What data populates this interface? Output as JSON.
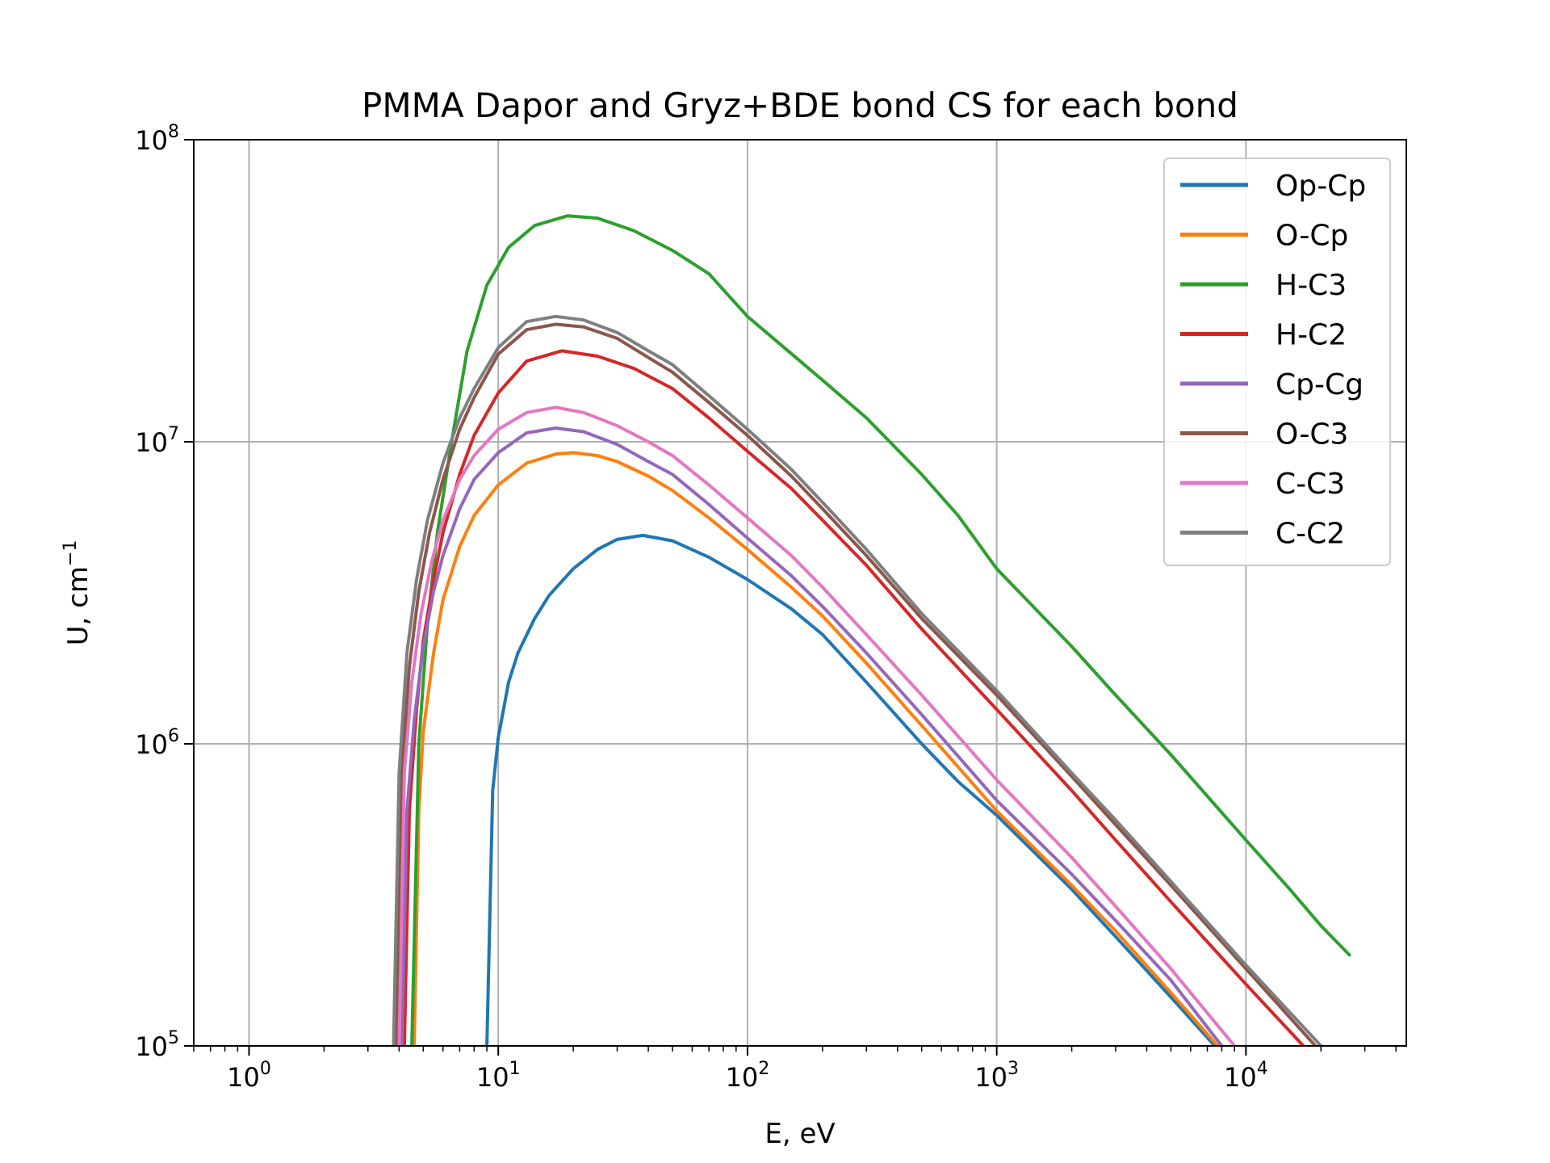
{
  "chart_data": {
    "type": "line",
    "title": "PMMA Dapor and Gryz+BDE bond CS for each bond",
    "xlabel": "E, eV",
    "ylabel": {
      "base": "U, cm",
      "sup": "−1"
    },
    "xscale": "log",
    "yscale": "log",
    "xlim": [
      0.6,
      44000
    ],
    "ylim": [
      100000,
      100000000
    ],
    "grid": true,
    "legend_position": "top-right",
    "x_ticks": [
      {
        "value": 1,
        "base": "10",
        "exp": "0"
      },
      {
        "value": 10,
        "base": "10",
        "exp": "1"
      },
      {
        "value": 100,
        "base": "10",
        "exp": "2"
      },
      {
        "value": 1000,
        "base": "10",
        "exp": "3"
      },
      {
        "value": 10000,
        "base": "10",
        "exp": "4"
      }
    ],
    "y_ticks": [
      {
        "value": 100000,
        "base": "10",
        "exp": "5"
      },
      {
        "value": 1000000,
        "base": "10",
        "exp": "6"
      },
      {
        "value": 10000000,
        "base": "10",
        "exp": "7"
      },
      {
        "value": 100000000,
        "base": "10",
        "exp": "8"
      }
    ],
    "series": [
      {
        "name": "Op-Cp",
        "color": "#1f77b4",
        "points": [
          [
            9.0,
            100000
          ],
          [
            9.5,
            700000
          ],
          [
            10,
            1050000
          ],
          [
            11,
            1600000
          ],
          [
            12,
            2000000
          ],
          [
            14,
            2600000
          ],
          [
            16,
            3100000
          ],
          [
            20,
            3800000
          ],
          [
            25,
            4400000
          ],
          [
            30,
            4750000
          ],
          [
            38,
            4900000
          ],
          [
            50,
            4700000
          ],
          [
            70,
            4150000
          ],
          [
            100,
            3500000
          ],
          [
            150,
            2800000
          ],
          [
            200,
            2300000
          ],
          [
            300,
            1600000
          ],
          [
            500,
            1000000
          ],
          [
            700,
            750000
          ],
          [
            1000,
            580000
          ],
          [
            2000,
            330000
          ],
          [
            3000,
            230000
          ],
          [
            5000,
            145000
          ],
          [
            7500,
            100000
          ]
        ]
      },
      {
        "name": "O-Cp",
        "color": "#ff7f0e",
        "points": [
          [
            4.6,
            100000
          ],
          [
            4.8,
            600000
          ],
          [
            5,
            1100000
          ],
          [
            5.5,
            2000000
          ],
          [
            6,
            3000000
          ],
          [
            7,
            4500000
          ],
          [
            8,
            5700000
          ],
          [
            10,
            7200000
          ],
          [
            13,
            8500000
          ],
          [
            17,
            9100000
          ],
          [
            20,
            9200000
          ],
          [
            25,
            9000000
          ],
          [
            30,
            8600000
          ],
          [
            40,
            7700000
          ],
          [
            50,
            6900000
          ],
          [
            70,
            5600000
          ],
          [
            100,
            4400000
          ],
          [
            150,
            3300000
          ],
          [
            200,
            2650000
          ],
          [
            300,
            1850000
          ],
          [
            500,
            1150000
          ],
          [
            1000,
            600000
          ],
          [
            2000,
            340000
          ],
          [
            3000,
            240000
          ],
          [
            5000,
            150000
          ],
          [
            7700,
            100000
          ]
        ]
      },
      {
        "name": "H-C3",
        "color": "#2ca02c",
        "points": [
          [
            4.5,
            100000
          ],
          [
            4.8,
            1000000
          ],
          [
            5.2,
            2500000
          ],
          [
            5.7,
            5000000
          ],
          [
            6.5,
            10000000
          ],
          [
            7.5,
            20000000
          ],
          [
            9,
            33000000
          ],
          [
            11,
            44000000
          ],
          [
            14,
            52000000
          ],
          [
            19,
            56000000
          ],
          [
            25,
            55000000
          ],
          [
            35,
            50000000
          ],
          [
            50,
            43000000
          ],
          [
            70,
            36000000
          ],
          [
            100,
            26000000
          ],
          [
            200,
            16000000
          ],
          [
            300,
            12000000
          ],
          [
            500,
            7800000
          ],
          [
            700,
            5700000
          ],
          [
            1000,
            3800000
          ],
          [
            2000,
            2100000
          ],
          [
            3000,
            1450000
          ],
          [
            5000,
            920000
          ],
          [
            10000,
            480000
          ],
          [
            15000,
            330000
          ],
          [
            20000,
            250000
          ],
          [
            26000,
            200000
          ]
        ]
      },
      {
        "name": "H-C2",
        "color": "#d62728",
        "points": [
          [
            4.2,
            100000
          ],
          [
            4.4,
            600000
          ],
          [
            4.7,
            1300000
          ],
          [
            5,
            2200000
          ],
          [
            5.5,
            3500000
          ],
          [
            6,
            5000000
          ],
          [
            7,
            7800000
          ],
          [
            8,
            10500000
          ],
          [
            10,
            14500000
          ],
          [
            13,
            18500000
          ],
          [
            18,
            20000000
          ],
          [
            25,
            19200000
          ],
          [
            35,
            17500000
          ],
          [
            50,
            15000000
          ],
          [
            70,
            12000000
          ],
          [
            100,
            9300000
          ],
          [
            150,
            7000000
          ],
          [
            200,
            5500000
          ],
          [
            300,
            3900000
          ],
          [
            500,
            2400000
          ],
          [
            1000,
            1300000
          ],
          [
            2000,
            700000
          ],
          [
            3000,
            480000
          ],
          [
            5000,
            300000
          ],
          [
            10000,
            160000
          ],
          [
            17000,
            100000
          ]
        ]
      },
      {
        "name": "Cp-Cg",
        "color": "#9467bd",
        "points": [
          [
            4.1,
            100000
          ],
          [
            4.3,
            600000
          ],
          [
            4.6,
            1200000
          ],
          [
            5,
            2100000
          ],
          [
            5.5,
            3200000
          ],
          [
            6,
            4200000
          ],
          [
            7,
            6000000
          ],
          [
            8,
            7500000
          ],
          [
            10,
            9200000
          ],
          [
            13,
            10700000
          ],
          [
            17,
            11100000
          ],
          [
            22,
            10800000
          ],
          [
            30,
            9800000
          ],
          [
            40,
            8600000
          ],
          [
            50,
            7800000
          ],
          [
            70,
            6200000
          ],
          [
            100,
            4800000
          ],
          [
            150,
            3600000
          ],
          [
            200,
            2850000
          ],
          [
            300,
            2000000
          ],
          [
            500,
            1250000
          ],
          [
            1000,
            650000
          ],
          [
            2000,
            370000
          ],
          [
            3000,
            260000
          ],
          [
            5000,
            165000
          ],
          [
            8000,
            100000
          ]
        ]
      },
      {
        "name": "O-C3",
        "color": "#8c564b",
        "points": [
          [
            3.9,
            100000
          ],
          [
            4.1,
            800000
          ],
          [
            4.4,
            1800000
          ],
          [
            4.8,
            3200000
          ],
          [
            5.3,
            5000000
          ],
          [
            6,
            7500000
          ],
          [
            7,
            11000000
          ],
          [
            8,
            14000000
          ],
          [
            10,
            19500000
          ],
          [
            13,
            23500000
          ],
          [
            17,
            24500000
          ],
          [
            22,
            24000000
          ],
          [
            30,
            22000000
          ],
          [
            40,
            19000000
          ],
          [
            50,
            17000000
          ],
          [
            70,
            13500000
          ],
          [
            100,
            10500000
          ],
          [
            150,
            7700000
          ],
          [
            200,
            6000000
          ],
          [
            300,
            4200000
          ],
          [
            500,
            2600000
          ],
          [
            1000,
            1450000
          ],
          [
            2000,
            780000
          ],
          [
            3000,
            540000
          ],
          [
            5000,
            340000
          ],
          [
            10000,
            180000
          ],
          [
            19000,
            100000
          ]
        ]
      },
      {
        "name": "C-C3",
        "color": "#e377c2",
        "points": [
          [
            4.0,
            100000
          ],
          [
            4.2,
            800000
          ],
          [
            4.5,
            1600000
          ],
          [
            4.9,
            2700000
          ],
          [
            5.4,
            4000000
          ],
          [
            6,
            5500000
          ],
          [
            7,
            7500000
          ],
          [
            8,
            9000000
          ],
          [
            10,
            11000000
          ],
          [
            13,
            12500000
          ],
          [
            17,
            13000000
          ],
          [
            22,
            12500000
          ],
          [
            30,
            11300000
          ],
          [
            40,
            10000000
          ],
          [
            50,
            9000000
          ],
          [
            70,
            7200000
          ],
          [
            100,
            5600000
          ],
          [
            150,
            4200000
          ],
          [
            200,
            3300000
          ],
          [
            300,
            2300000
          ],
          [
            500,
            1450000
          ],
          [
            1000,
            760000
          ],
          [
            2000,
            420000
          ],
          [
            3000,
            290000
          ],
          [
            5000,
            180000
          ],
          [
            9000,
            100000
          ]
        ]
      },
      {
        "name": "C-C2",
        "color": "#7f7f7f",
        "points": [
          [
            3.8,
            100000
          ],
          [
            4.0,
            800000
          ],
          [
            4.3,
            2000000
          ],
          [
            4.7,
            3500000
          ],
          [
            5.2,
            5500000
          ],
          [
            6,
            8500000
          ],
          [
            7,
            12000000
          ],
          [
            8,
            15000000
          ],
          [
            10,
            20500000
          ],
          [
            13,
            25000000
          ],
          [
            17,
            26000000
          ],
          [
            22,
            25300000
          ],
          [
            30,
            23000000
          ],
          [
            40,
            20000000
          ],
          [
            50,
            18000000
          ],
          [
            70,
            14200000
          ],
          [
            100,
            11000000
          ],
          [
            150,
            8100000
          ],
          [
            200,
            6300000
          ],
          [
            300,
            4400000
          ],
          [
            500,
            2700000
          ],
          [
            1000,
            1500000
          ],
          [
            2000,
            800000
          ],
          [
            3000,
            560000
          ],
          [
            5000,
            350000
          ],
          [
            10000,
            185000
          ],
          [
            20000,
            100000
          ]
        ]
      }
    ]
  }
}
